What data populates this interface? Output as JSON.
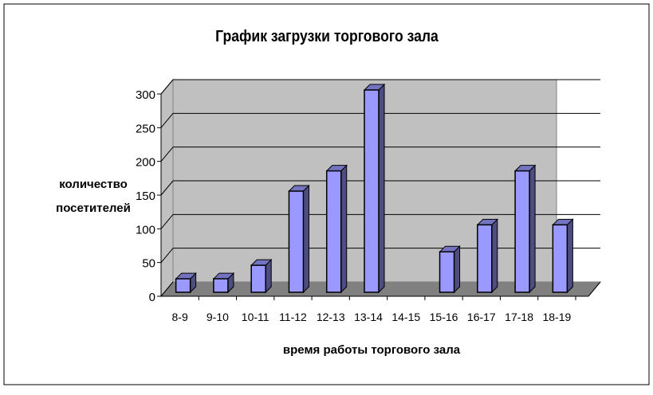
{
  "chart_data": {
    "type": "bar",
    "style": "3d-column",
    "title": "График загрузки торгового зала",
    "xlabel": "время работы торгового зала",
    "ylabel": [
      "количество",
      "посетителей"
    ],
    "categories": [
      "8-9",
      "9-10",
      "10-11",
      "11-12",
      "12-13",
      "13-14",
      "14-15",
      "15-16",
      "16-17",
      "17-18",
      "18-19"
    ],
    "values": [
      20,
      20,
      40,
      150,
      180,
      300,
      0,
      60,
      100,
      180,
      100
    ],
    "ylim": [
      0,
      300
    ],
    "yticks": [
      0,
      50,
      100,
      150,
      200,
      250,
      300
    ],
    "grid": true,
    "legend": "none",
    "colors": {
      "bar_front": "#9999ff",
      "bar_side": "#4d4d80",
      "bar_top": "#7373bf",
      "wall": "#c0c0c0",
      "floor": "#808080"
    }
  }
}
